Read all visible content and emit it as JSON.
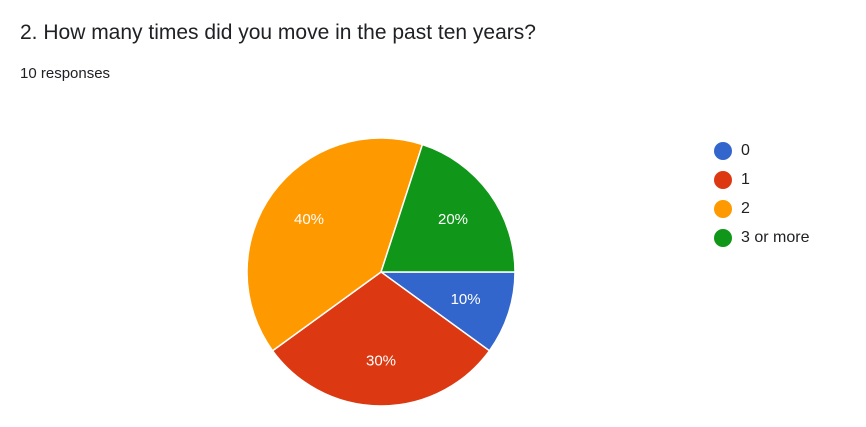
{
  "question": {
    "title": "2. How many times did you move in the past ten years?",
    "responses": "10 responses"
  },
  "chart_data": {
    "type": "pie",
    "title": "2. How many times did you move in the past ten years?",
    "categories": [
      "0",
      "1",
      "2",
      "3 or more"
    ],
    "values": [
      10,
      30,
      40,
      20
    ],
    "labels": [
      "10%",
      "30%",
      "40%",
      "20%"
    ],
    "colors": [
      "#3366cc",
      "#dc3912",
      "#ff9900",
      "#109618"
    ],
    "start": "3 o'clock, clockwise",
    "legend_position": "right"
  }
}
